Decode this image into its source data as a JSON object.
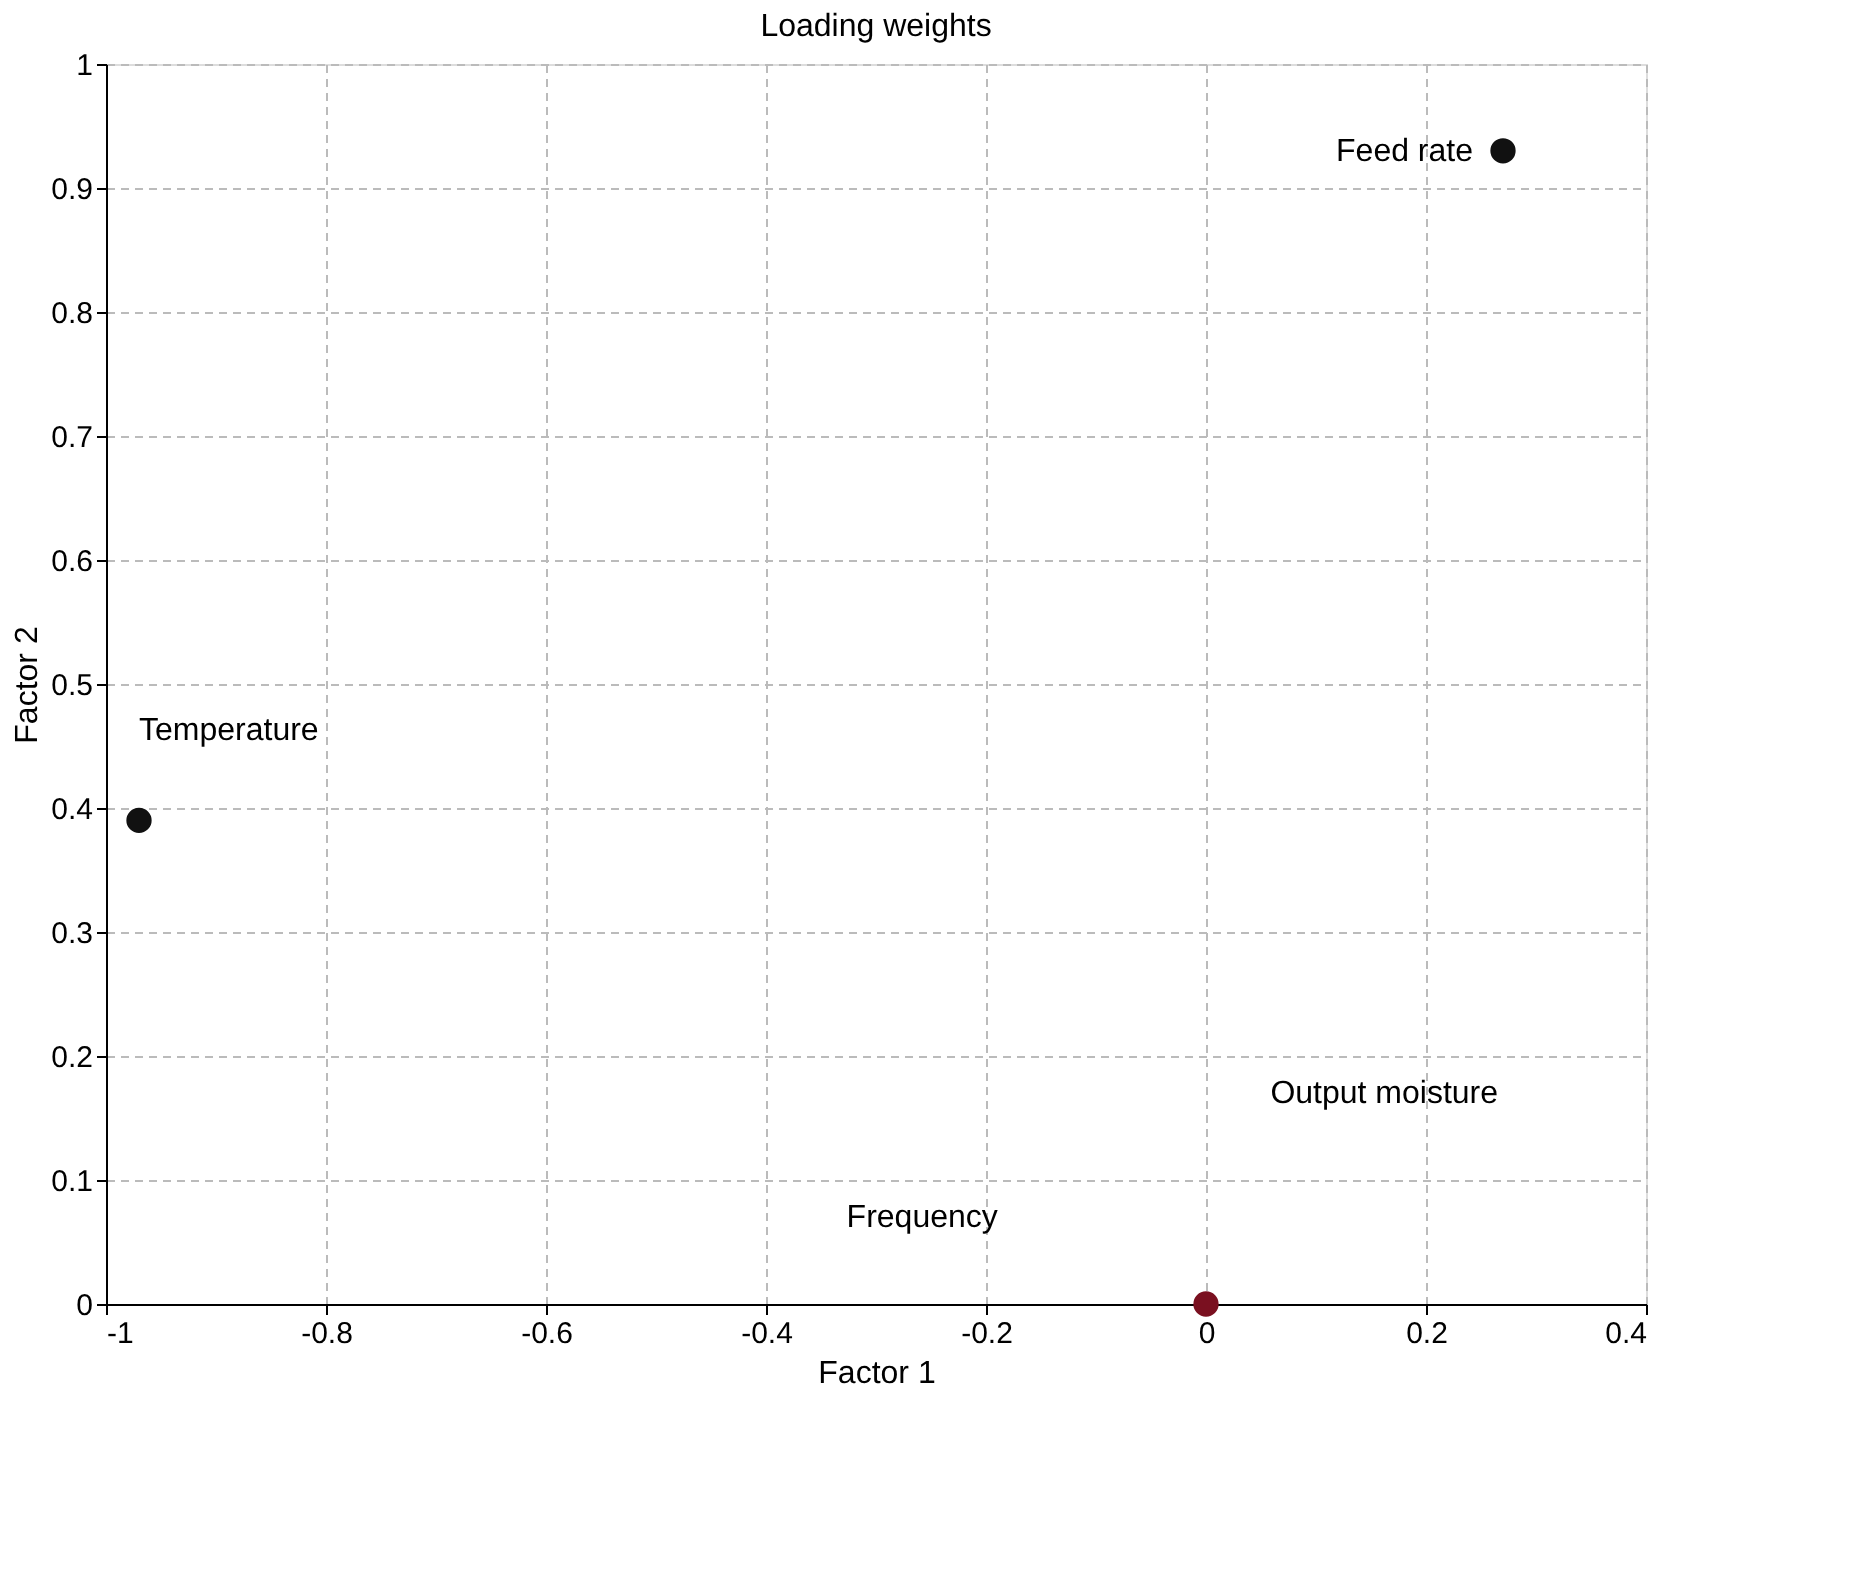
{
  "chart_data": {
    "type": "scatter",
    "title": "Loading weights",
    "xlabel": "Factor 1",
    "ylabel": "Factor 2",
    "x": [
      -0.97,
      0.27,
      0.0
    ],
    "values": [
      0.39,
      0.93,
      0.0
    ],
    "colors": [
      "#111111",
      "#111111",
      "#7a1020"
    ],
    "annotations": [
      {
        "text": "Temperature",
        "x": -0.97,
        "y": 0.39
      },
      {
        "text": "Feed rate",
        "x": 0.27,
        "y": 0.93
      },
      "Frequency",
      "Output moisture"
    ],
    "xlim": [
      -1,
      0.4
    ],
    "xticks": [
      -1,
      -0.8,
      -0.6,
      -0.4,
      -0.2,
      0,
      0.2,
      0.4
    ],
    "ylim": [
      0,
      1
    ],
    "yticks": [
      0,
      0.1,
      0.2,
      0.3,
      0.4,
      0.5,
      0.6,
      0.7,
      0.8,
      0.9,
      1
    ],
    "grid": true,
    "marker": "circle"
  }
}
